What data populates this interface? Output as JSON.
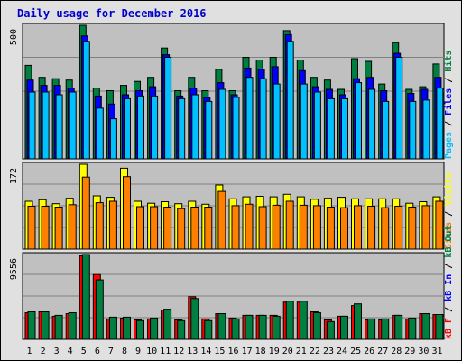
{
  "chart_data": [
    {
      "panel": "top",
      "type": "bar",
      "title": "Daily usage for December 2016",
      "y_max_label": "500",
      "ylim": [
        0,
        500
      ],
      "categories": [
        "1",
        "2",
        "3",
        "4",
        "5",
        "6",
        "7",
        "8",
        "9",
        "10",
        "11",
        "12",
        "13",
        "14",
        "15",
        "16",
        "17",
        "18",
        "19",
        "20",
        "21",
        "22",
        "23",
        "24",
        "25",
        "26",
        "27",
        "28",
        "29",
        "30",
        "31"
      ],
      "side_label": {
        "parts": [
          "Pages",
          " / ",
          "Files",
          " / ",
          "Hits"
        ]
      },
      "series": [
        {
          "name": "Hits",
          "color": "#008040",
          "values": [
            350,
            305,
            300,
            295,
            500,
            265,
            255,
            275,
            290,
            305,
            415,
            255,
            305,
            255,
            335,
            255,
            380,
            370,
            380,
            480,
            370,
            305,
            295,
            260,
            375,
            365,
            280,
            435,
            260,
            270,
            355
          ]
        },
        {
          "name": "Files",
          "color": "#0000ff",
          "values": [
            295,
            275,
            275,
            265,
            460,
            235,
            205,
            240,
            255,
            270,
            390,
            235,
            265,
            230,
            285,
            240,
            340,
            335,
            345,
            465,
            330,
            270,
            260,
            240,
            300,
            305,
            255,
            395,
            245,
            260,
            305
          ]
        },
        {
          "name": "Pages",
          "color": "#00c0ff",
          "values": [
            250,
            250,
            240,
            250,
            440,
            190,
            150,
            225,
            235,
            235,
            380,
            225,
            240,
            215,
            260,
            230,
            305,
            300,
            280,
            440,
            280,
            250,
            225,
            225,
            285,
            260,
            215,
            380,
            215,
            220,
            265
          ]
        }
      ]
    },
    {
      "panel": "middle",
      "type": "bar",
      "y_max_label": "172",
      "ylim": [
        0,
        172
      ],
      "categories": [
        "1",
        "2",
        "3",
        "4",
        "5",
        "6",
        "7",
        "8",
        "9",
        "10",
        "11",
        "12",
        "13",
        "14",
        "15",
        "16",
        "17",
        "18",
        "19",
        "20",
        "21",
        "22",
        "23",
        "24",
        "25",
        "26",
        "27",
        "28",
        "29",
        "30",
        "31"
      ],
      "side_label": {
        "parts": [
          "Sites",
          " / ",
          "Visits"
        ]
      },
      "series": [
        {
          "name": "Visits",
          "color": "#ffff00",
          "values": [
            97,
            100,
            92,
            103,
            172,
            108,
            105,
            164,
            97,
            93,
            96,
            92,
            97,
            91,
            130,
            102,
            106,
            107,
            106,
            111,
            106,
            101,
            103,
            105,
            102,
            102,
            102,
            102,
            93,
            96,
            106
          ]
        },
        {
          "name": "Sites",
          "color": "#ff8000",
          "values": [
            87,
            87,
            85,
            90,
            146,
            94,
            97,
            147,
            86,
            86,
            85,
            82,
            85,
            85,
            117,
            88,
            91,
            86,
            89,
            97,
            89,
            88,
            85,
            84,
            88,
            87,
            84,
            87,
            85,
            88,
            97
          ]
        }
      ]
    },
    {
      "panel": "bottom",
      "type": "bar",
      "y_max_label": "9556",
      "ylim": [
        0,
        9556
      ],
      "categories": [
        "1",
        "2",
        "3",
        "4",
        "5",
        "6",
        "7",
        "8",
        "9",
        "10",
        "11",
        "12",
        "13",
        "14",
        "15",
        "16",
        "17",
        "18",
        "19",
        "20",
        "21",
        "22",
        "23",
        "24",
        "25",
        "26",
        "27",
        "28",
        "29",
        "30",
        "31"
      ],
      "x_tick_colors": {
        "weekday": "#000000",
        "weekend": "#008040"
      },
      "weekend_days": [
        "3",
        "4",
        "10",
        "11",
        "17",
        "18",
        "24",
        "25",
        "31"
      ],
      "side_label": {
        "parts": [
          "kB F",
          " / ",
          "kB In",
          " / ",
          "kB Out"
        ]
      },
      "series": [
        {
          "name": "kB F",
          "color": "#ff0000",
          "values": [
            3000,
            3100,
            2600,
            2900,
            9400,
            7300,
            2300,
            2400,
            2200,
            2300,
            3300,
            2200,
            4800,
            2300,
            2900,
            2400,
            2700,
            2700,
            2700,
            4200,
            4200,
            3100,
            2200,
            2600,
            3800,
            2200,
            2200,
            2700,
            2300,
            2900,
            2800
          ]
        },
        {
          "name": "kB Out",
          "color": "#008040",
          "values": [
            3100,
            3100,
            2700,
            3000,
            9556,
            6700,
            2500,
            2500,
            2100,
            2400,
            3400,
            2100,
            4600,
            2100,
            2900,
            2300,
            2700,
            2700,
            2600,
            4300,
            4300,
            3000,
            2000,
            2600,
            4000,
            2300,
            2300,
            2700,
            2400,
            2900,
            2800
          ]
        }
      ]
    }
  ]
}
